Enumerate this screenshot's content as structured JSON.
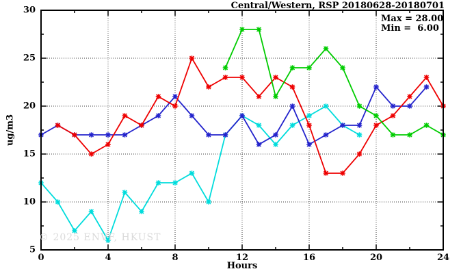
{
  "chart_data": {
    "type": "line",
    "title": "Central/Western, RSP 20180628-20180701",
    "xlabel": "Hours",
    "ylabel": "ug/m3",
    "xlim": [
      0,
      24
    ],
    "ylim": [
      5,
      30
    ],
    "x_major_ticks": [
      0,
      4,
      8,
      12,
      16,
      20,
      24
    ],
    "x_minor_ticks": [
      2,
      6,
      10,
      14,
      18,
      22
    ],
    "y_major_ticks": [
      5,
      10,
      15,
      20,
      25,
      30
    ],
    "y_minor_ticks": [
      7.5,
      12.5,
      17.5,
      22.5,
      27.5
    ],
    "grid_x": [
      4,
      8,
      12,
      16,
      20
    ],
    "grid_y": [
      10,
      15,
      20,
      25
    ],
    "grid_on": true,
    "legend_position": "none",
    "annotations": {
      "max_label": "Max = 28.00",
      "min_label": "Min =  6.00"
    },
    "watermark": "© 2025 ENVF, HKUST",
    "series": [
      {
        "name": "series-cyan",
        "color": "#00dcdc",
        "start_hour": 0,
        "values": [
          12,
          10,
          7,
          9,
          6,
          11,
          9,
          12,
          12,
          13,
          10,
          17,
          19,
          18,
          16,
          18,
          19,
          20,
          18,
          17
        ]
      },
      {
        "name": "series-blue",
        "color": "#2323cc",
        "start_hour": 0,
        "values": [
          17,
          18,
          17,
          17,
          17,
          17,
          18,
          19,
          21,
          19,
          17,
          17,
          19,
          16,
          17,
          20,
          16,
          17,
          18,
          18,
          22,
          20,
          20,
          22
        ]
      },
      {
        "name": "series-red",
        "color": "#ee0000",
        "start_hour": 1,
        "values": [
          18,
          17,
          15,
          16,
          19,
          18,
          21,
          20,
          25,
          22,
          23,
          23,
          21,
          23,
          22,
          18,
          13,
          13,
          15,
          18,
          19,
          21,
          23,
          20
        ]
      },
      {
        "name": "series-green",
        "color": "#00cc00",
        "start_hour": 11,
        "values": [
          24,
          28,
          28,
          21,
          24,
          24,
          26,
          24,
          20,
          19,
          17,
          17,
          18,
          17
        ]
      }
    ]
  }
}
